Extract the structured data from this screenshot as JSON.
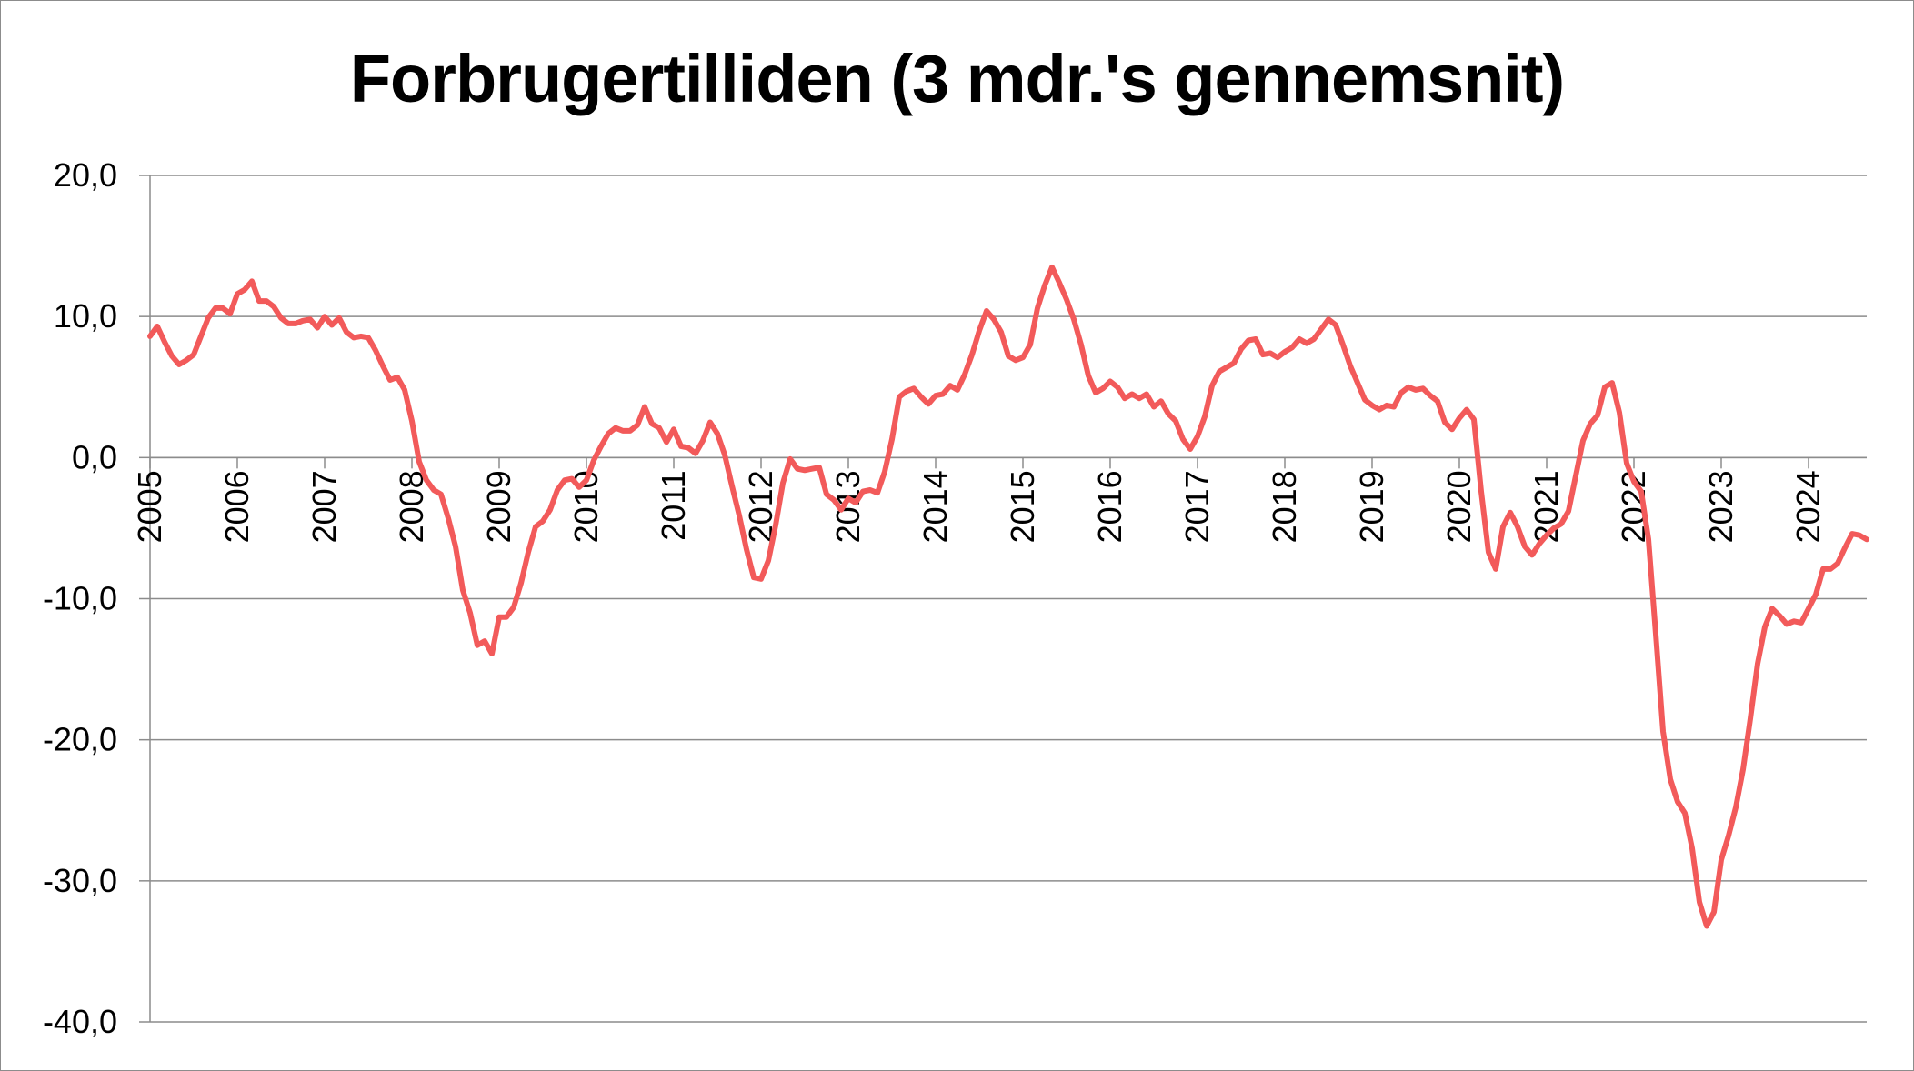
{
  "chart_data": {
    "type": "line",
    "title": "Forbrugertilliden (3 mdr.'s gennemsnit)",
    "xlabel": "",
    "ylabel": "",
    "ylim": [
      -40,
      20
    ],
    "y_ticks": [
      20,
      10,
      0,
      -10,
      -20,
      -30,
      -40
    ],
    "y_tick_labels": [
      "20,0",
      "10,0",
      "0,0",
      "-10,0",
      "-20,0",
      "-30,0",
      "-40,0"
    ],
    "x_range": [
      "2005-01",
      "2024-09"
    ],
    "x_tick_labels": [
      "2005",
      "2006",
      "2007",
      "2008",
      "2009",
      "2010",
      "2011",
      "2012",
      "2013",
      "2014",
      "2015",
      "2016",
      "2017",
      "2018",
      "2019",
      "2020",
      "2021",
      "2022",
      "2023",
      "2024"
    ],
    "grid": true,
    "legend": "none",
    "series": [
      {
        "color": "#f25a5a",
        "points": [
          [
            "2005-01",
            8.6
          ],
          [
            "2005-02",
            9.3
          ],
          [
            "2005-03",
            8.2
          ],
          [
            "2005-04",
            7.2
          ],
          [
            "2005-05",
            6.6
          ],
          [
            "2005-06",
            6.9
          ],
          [
            "2005-07",
            7.3
          ],
          [
            "2005-08",
            8.6
          ],
          [
            "2005-09",
            9.9
          ],
          [
            "2005-10",
            10.6
          ],
          [
            "2005-11",
            10.6
          ],
          [
            "2005-12",
            10.2
          ],
          [
            "2006-01",
            11.6
          ],
          [
            "2006-02",
            11.9
          ],
          [
            "2006-03",
            12.5
          ],
          [
            "2006-04",
            11.1
          ],
          [
            "2006-05",
            11.1
          ],
          [
            "2006-06",
            10.7
          ],
          [
            "2006-07",
            9.9
          ],
          [
            "2006-08",
            9.5
          ],
          [
            "2006-09",
            9.5
          ],
          [
            "2006-10",
            9.7
          ],
          [
            "2006-11",
            9.8
          ],
          [
            "2006-12",
            9.2
          ],
          [
            "2007-01",
            10.0
          ],
          [
            "2007-02",
            9.4
          ],
          [
            "2007-03",
            9.9
          ],
          [
            "2007-04",
            8.9
          ],
          [
            "2007-05",
            8.5
          ],
          [
            "2007-06",
            8.6
          ],
          [
            "2007-07",
            8.5
          ],
          [
            "2007-08",
            7.6
          ],
          [
            "2007-09",
            6.5
          ],
          [
            "2007-10",
            5.5
          ],
          [
            "2007-11",
            5.7
          ],
          [
            "2007-12",
            4.8
          ],
          [
            "2008-01",
            2.6
          ],
          [
            "2008-02",
            -0.3
          ],
          [
            "2008-03",
            -1.6
          ],
          [
            "2008-04",
            -2.3
          ],
          [
            "2008-05",
            -2.6
          ],
          [
            "2008-06",
            -4.3
          ],
          [
            "2008-07",
            -6.3
          ],
          [
            "2008-08",
            -9.4
          ],
          [
            "2008-09",
            -11.0
          ],
          [
            "2008-10",
            -13.3
          ],
          [
            "2008-11",
            -13.0
          ],
          [
            "2008-12",
            -13.9
          ],
          [
            "2009-01",
            -11.3
          ],
          [
            "2009-02",
            -11.3
          ],
          [
            "2009-03",
            -10.6
          ],
          [
            "2009-04",
            -8.9
          ],
          [
            "2009-05",
            -6.7
          ],
          [
            "2009-06",
            -4.9
          ],
          [
            "2009-07",
            -4.5
          ],
          [
            "2009-08",
            -3.7
          ],
          [
            "2009-09",
            -2.3
          ],
          [
            "2009-10",
            -1.6
          ],
          [
            "2009-11",
            -1.5
          ],
          [
            "2009-12",
            -2.1
          ],
          [
            "2010-01",
            -1.6
          ],
          [
            "2010-02",
            -0.2
          ],
          [
            "2010-03",
            0.8
          ],
          [
            "2010-04",
            1.7
          ],
          [
            "2010-05",
            2.1
          ],
          [
            "2010-06",
            1.9
          ],
          [
            "2010-07",
            1.9
          ],
          [
            "2010-08",
            2.3
          ],
          [
            "2010-09",
            3.6
          ],
          [
            "2010-10",
            2.4
          ],
          [
            "2010-11",
            2.1
          ],
          [
            "2010-12",
            1.1
          ],
          [
            "2011-01",
            2.0
          ],
          [
            "2011-02",
            0.8
          ],
          [
            "2011-03",
            0.7
          ],
          [
            "2011-04",
            0.3
          ],
          [
            "2011-05",
            1.2
          ],
          [
            "2011-06",
            2.5
          ],
          [
            "2011-07",
            1.7
          ],
          [
            "2011-08",
            0.2
          ],
          [
            "2011-09",
            -2.0
          ],
          [
            "2011-10",
            -4.1
          ],
          [
            "2011-11",
            -6.5
          ],
          [
            "2011-12",
            -8.5
          ],
          [
            "2012-01",
            -8.6
          ],
          [
            "2012-02",
            -7.3
          ],
          [
            "2012-03",
            -4.8
          ],
          [
            "2012-04",
            -1.8
          ],
          [
            "2012-05",
            -0.1
          ],
          [
            "2012-06",
            -0.8
          ],
          [
            "2012-07",
            -0.9
          ],
          [
            "2012-08",
            -0.8
          ],
          [
            "2012-09",
            -0.7
          ],
          [
            "2012-10",
            -2.6
          ],
          [
            "2012-11",
            -3.0
          ],
          [
            "2012-12",
            -3.7
          ],
          [
            "2013-01",
            -2.9
          ],
          [
            "2013-02",
            -3.2
          ],
          [
            "2013-03",
            -2.4
          ],
          [
            "2013-04",
            -2.3
          ],
          [
            "2013-05",
            -2.5
          ],
          [
            "2013-06",
            -1.0
          ],
          [
            "2013-07",
            1.3
          ],
          [
            "2013-08",
            4.3
          ],
          [
            "2013-09",
            4.7
          ],
          [
            "2013-10",
            4.9
          ],
          [
            "2013-11",
            4.3
          ],
          [
            "2013-12",
            3.8
          ],
          [
            "2014-01",
            4.4
          ],
          [
            "2014-02",
            4.5
          ],
          [
            "2014-03",
            5.1
          ],
          [
            "2014-04",
            4.8
          ],
          [
            "2014-05",
            5.9
          ],
          [
            "2014-06",
            7.3
          ],
          [
            "2014-07",
            9.0
          ],
          [
            "2014-08",
            10.4
          ],
          [
            "2014-09",
            9.8
          ],
          [
            "2014-10",
            8.9
          ],
          [
            "2014-11",
            7.2
          ],
          [
            "2014-12",
            6.9
          ],
          [
            "2015-01",
            7.1
          ],
          [
            "2015-02",
            8.0
          ],
          [
            "2015-03",
            10.6
          ],
          [
            "2015-04",
            12.2
          ],
          [
            "2015-05",
            13.5
          ],
          [
            "2015-06",
            12.4
          ],
          [
            "2015-07",
            11.2
          ],
          [
            "2015-08",
            9.8
          ],
          [
            "2015-09",
            8.0
          ],
          [
            "2015-10",
            5.8
          ],
          [
            "2015-11",
            4.6
          ],
          [
            "2015-12",
            4.9
          ],
          [
            "2016-01",
            5.4
          ],
          [
            "2016-02",
            5.0
          ],
          [
            "2016-03",
            4.2
          ],
          [
            "2016-04",
            4.5
          ],
          [
            "2016-05",
            4.2
          ],
          [
            "2016-06",
            4.5
          ],
          [
            "2016-07",
            3.6
          ],
          [
            "2016-08",
            4.0
          ],
          [
            "2016-09",
            3.1
          ],
          [
            "2016-10",
            2.6
          ],
          [
            "2016-11",
            1.3
          ],
          [
            "2016-12",
            0.6
          ],
          [
            "2017-01",
            1.5
          ],
          [
            "2017-02",
            2.9
          ],
          [
            "2017-03",
            5.1
          ],
          [
            "2017-04",
            6.1
          ],
          [
            "2017-05",
            6.4
          ],
          [
            "2017-06",
            6.7
          ],
          [
            "2017-07",
            7.7
          ],
          [
            "2017-08",
            8.3
          ],
          [
            "2017-09",
            8.4
          ],
          [
            "2017-10",
            7.3
          ],
          [
            "2017-11",
            7.4
          ],
          [
            "2017-12",
            7.1
          ],
          [
            "2018-01",
            7.5
          ],
          [
            "2018-02",
            7.8
          ],
          [
            "2018-03",
            8.4
          ],
          [
            "2018-04",
            8.1
          ],
          [
            "2018-05",
            8.4
          ],
          [
            "2018-06",
            9.1
          ],
          [
            "2018-07",
            9.8
          ],
          [
            "2018-08",
            9.4
          ],
          [
            "2018-09",
            8.0
          ],
          [
            "2018-10",
            6.5
          ],
          [
            "2018-11",
            5.3
          ],
          [
            "2018-12",
            4.1
          ],
          [
            "2019-01",
            3.7
          ],
          [
            "2019-02",
            3.4
          ],
          [
            "2019-03",
            3.7
          ],
          [
            "2019-04",
            3.6
          ],
          [
            "2019-05",
            4.6
          ],
          [
            "2019-06",
            5.0
          ],
          [
            "2019-07",
            4.8
          ],
          [
            "2019-08",
            4.9
          ],
          [
            "2019-09",
            4.4
          ],
          [
            "2019-10",
            4.0
          ],
          [
            "2019-11",
            2.5
          ],
          [
            "2019-12",
            2.0
          ],
          [
            "2020-01",
            2.8
          ],
          [
            "2020-02",
            3.4
          ],
          [
            "2020-03",
            2.7
          ],
          [
            "2020-04",
            -2.4
          ],
          [
            "2020-05",
            -6.7
          ],
          [
            "2020-06",
            -7.9
          ],
          [
            "2020-07",
            -4.9
          ],
          [
            "2020-08",
            -3.9
          ],
          [
            "2020-09",
            -4.9
          ],
          [
            "2020-10",
            -6.3
          ],
          [
            "2020-11",
            -6.9
          ],
          [
            "2020-12",
            -6.1
          ],
          [
            "2021-01",
            -5.5
          ],
          [
            "2021-02",
            -5.0
          ],
          [
            "2021-03",
            -4.7
          ],
          [
            "2021-04",
            -3.8
          ],
          [
            "2021-05",
            -1.3
          ],
          [
            "2021-06",
            1.2
          ],
          [
            "2021-07",
            2.4
          ],
          [
            "2021-08",
            3.0
          ],
          [
            "2021-09",
            5.0
          ],
          [
            "2021-10",
            5.3
          ],
          [
            "2021-11",
            3.2
          ],
          [
            "2021-12",
            -0.4
          ],
          [
            "2022-01",
            -1.7
          ],
          [
            "2022-02",
            -2.4
          ],
          [
            "2022-03",
            -5.8
          ],
          [
            "2022-04",
            -12.5
          ],
          [
            "2022-05",
            -19.4
          ],
          [
            "2022-06",
            -22.8
          ],
          [
            "2022-07",
            -24.4
          ],
          [
            "2022-08",
            -25.2
          ],
          [
            "2022-09",
            -27.7
          ],
          [
            "2022-10",
            -31.5
          ],
          [
            "2022-11",
            -33.2
          ],
          [
            "2022-12",
            -32.2
          ],
          [
            "2023-01",
            -28.5
          ],
          [
            "2023-02",
            -26.8
          ],
          [
            "2023-03",
            -24.8
          ],
          [
            "2023-04",
            -22.1
          ],
          [
            "2023-05",
            -18.5
          ],
          [
            "2023-06",
            -14.6
          ],
          [
            "2023-07",
            -12.0
          ],
          [
            "2023-08",
            -10.7
          ],
          [
            "2023-09",
            -11.2
          ],
          [
            "2023-10",
            -11.8
          ],
          [
            "2023-11",
            -11.6
          ],
          [
            "2023-12",
            -11.7
          ],
          [
            "2024-01",
            -10.7
          ],
          [
            "2024-02",
            -9.7
          ],
          [
            "2024-03",
            -7.9
          ],
          [
            "2024-04",
            -7.9
          ],
          [
            "2024-05",
            -7.5
          ],
          [
            "2024-06",
            -6.4
          ],
          [
            "2024-07",
            -5.4
          ],
          [
            "2024-08",
            -5.5
          ],
          [
            "2024-09",
            -5.8
          ]
        ]
      }
    ]
  }
}
